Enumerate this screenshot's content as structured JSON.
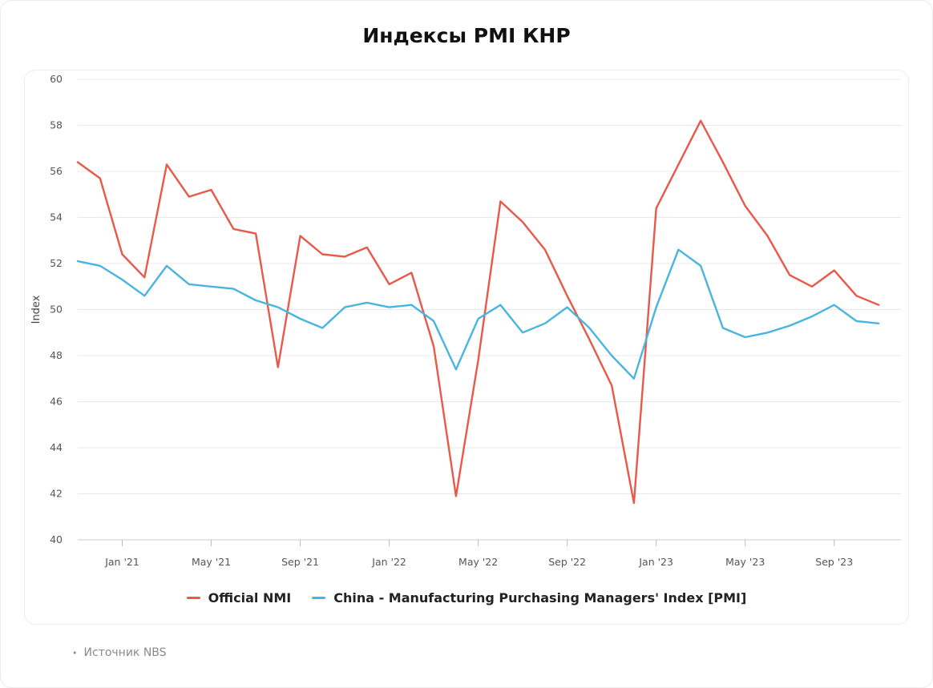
{
  "title": "Индексы PMI КНР",
  "source": "Источник NBS",
  "colors": {
    "nmi": "#e8594a",
    "pmi": "#48b5de",
    "grid": "#e8e8e8"
  },
  "chart_data": {
    "type": "line",
    "title": "Индексы PMI КНР",
    "xlabel": "",
    "ylabel": "Index",
    "ylim": [
      40,
      60
    ],
    "yticks": [
      40,
      42,
      44,
      46,
      48,
      50,
      52,
      54,
      56,
      58,
      60
    ],
    "x_range": [
      "2020-11",
      "2023-12"
    ],
    "xtick_labels": [
      {
        "x": "2021-01",
        "label": "Jan '21"
      },
      {
        "x": "2021-05",
        "label": "May '21"
      },
      {
        "x": "2021-09",
        "label": "Sep '21"
      },
      {
        "x": "2022-01",
        "label": "Jan '22"
      },
      {
        "x": "2022-05",
        "label": "May '22"
      },
      {
        "x": "2022-09",
        "label": "Sep '22"
      },
      {
        "x": "2023-01",
        "label": "Jan '23"
      },
      {
        "x": "2023-05",
        "label": "May '23"
      },
      {
        "x": "2023-09",
        "label": "Sep '23"
      }
    ],
    "x": [
      "2020-11",
      "2020-12",
      "2021-01",
      "2021-02",
      "2021-03",
      "2021-04",
      "2021-05",
      "2021-06",
      "2021-07",
      "2021-08",
      "2021-09",
      "2021-10",
      "2021-11",
      "2021-12",
      "2022-01",
      "2022-02",
      "2022-03",
      "2022-04",
      "2022-05",
      "2022-06",
      "2022-07",
      "2022-08",
      "2022-09",
      "2022-10",
      "2022-11",
      "2022-12",
      "2023-01",
      "2023-02",
      "2023-03",
      "2023-04",
      "2023-05",
      "2023-06",
      "2023-07",
      "2023-08",
      "2023-09",
      "2023-10",
      "2023-11",
      "2023-12"
    ],
    "series": [
      {
        "name": "Official NMI",
        "color": "#e8594a",
        "values": [
          56.4,
          55.7,
          52.4,
          51.4,
          56.3,
          54.9,
          55.2,
          53.5,
          53.3,
          47.5,
          53.2,
          52.4,
          52.3,
          52.7,
          51.1,
          51.6,
          48.4,
          41.9,
          47.8,
          54.7,
          53.8,
          52.6,
          50.6,
          48.7,
          46.7,
          41.6,
          54.4,
          56.3,
          58.2,
          56.4,
          54.5,
          53.2,
          51.5,
          51.0,
          51.7,
          50.6,
          50.2,
          null
        ]
      },
      {
        "name": "China - Manufacturing Purchasing Managers' Index [PMI]",
        "color": "#48b5de",
        "values": [
          52.1,
          51.9,
          51.3,
          50.6,
          51.9,
          51.1,
          51.0,
          50.9,
          50.4,
          50.1,
          49.6,
          49.2,
          50.1,
          50.3,
          50.1,
          50.2,
          49.5,
          47.4,
          49.6,
          50.2,
          49.0,
          49.4,
          50.1,
          49.2,
          48.0,
          47.0,
          50.1,
          52.6,
          51.9,
          49.2,
          48.8,
          49.0,
          49.3,
          49.7,
          50.2,
          49.5,
          49.4,
          null
        ]
      }
    ],
    "grid": true,
    "legend": "bottom-center"
  }
}
